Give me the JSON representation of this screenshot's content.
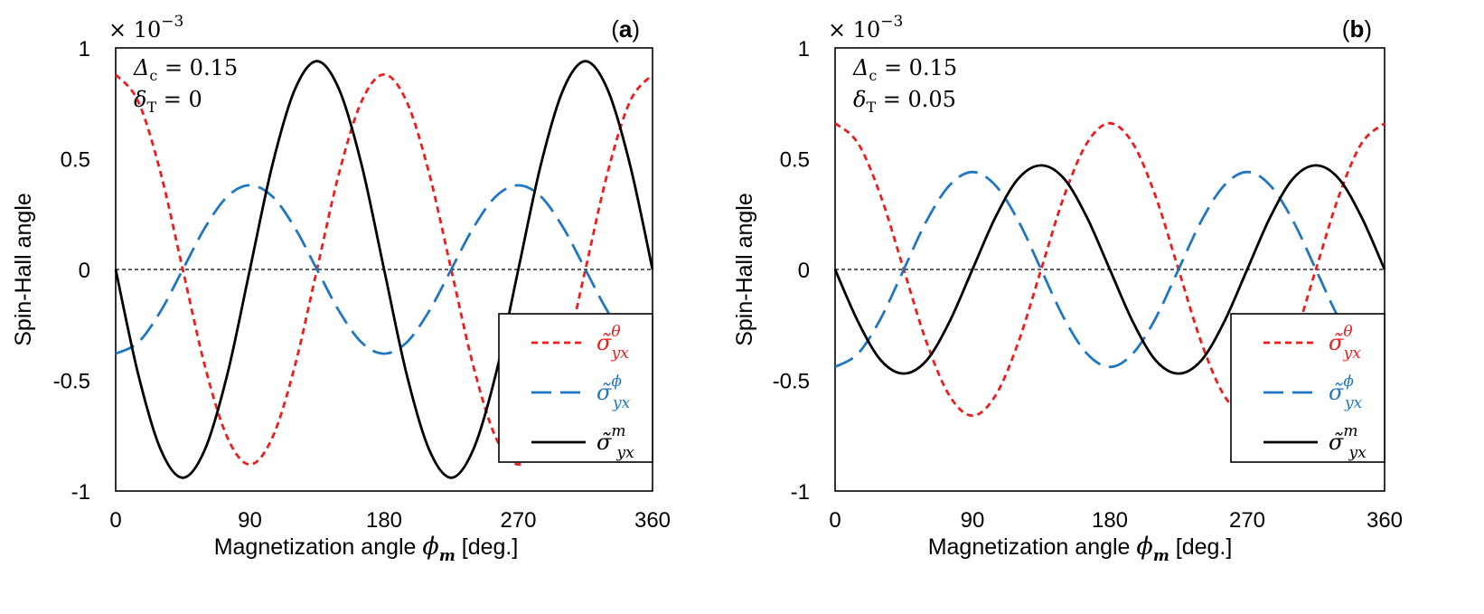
{
  "chart_data": [
    {
      "panel_label": "a",
      "type": "line",
      "xlabel_prefix": "Magnetization angle",
      "xlabel_symbol": "ϕ",
      "xlabel_sub": "m",
      "xlabel_suffix": "[deg.]",
      "ylabel": "Spin-Hall angle",
      "y_scale_text": "× 10",
      "y_scale_exp": "−3",
      "xlim": [
        0,
        360
      ],
      "ylim": [
        -1,
        1
      ],
      "x_ticks": [
        "0",
        "90",
        "180",
        "270",
        "360"
      ],
      "y_ticks": [
        "-1",
        "-0.5",
        "0",
        "0.5",
        "1"
      ],
      "annotations": [
        {
          "sym": "Δ",
          "sub": "c",
          "value": "0.15"
        },
        {
          "sym": "δ",
          "sub": "T",
          "value": "0"
        }
      ],
      "x": [
        0,
        15,
        30,
        45,
        60,
        75,
        90,
        105,
        120,
        135,
        150,
        165,
        180,
        195,
        210,
        225,
        240,
        255,
        270,
        285,
        300,
        315,
        330,
        345,
        360
      ],
      "series": [
        {
          "name": "σ̃_yx^θ",
          "color": "#ee1c1c",
          "dash": "short",
          "values": [
            0.88,
            0.76,
            0.44,
            0.0,
            -0.44,
            -0.76,
            -0.88,
            -0.76,
            -0.44,
            0.0,
            0.44,
            0.76,
            0.88,
            0.76,
            0.44,
            0.0,
            -0.44,
            -0.76,
            -0.88,
            -0.76,
            -0.44,
            0.0,
            0.44,
            0.76,
            0.88
          ]
        },
        {
          "name": "σ̃_yx^ϕ",
          "color": "#1f77c4",
          "dash": "long",
          "values": [
            -0.38,
            -0.33,
            -0.19,
            0.0,
            0.19,
            0.33,
            0.38,
            0.33,
            0.19,
            0.0,
            -0.19,
            -0.33,
            -0.38,
            -0.33,
            -0.19,
            0.0,
            0.19,
            0.33,
            0.38,
            0.33,
            0.19,
            0.0,
            -0.19,
            -0.33,
            -0.38
          ]
        },
        {
          "name": "σ̃_yx^m",
          "color": "#000000",
          "dash": "solid",
          "values": [
            0.0,
            -0.47,
            -0.81,
            -0.94,
            -0.81,
            -0.47,
            0.0,
            0.47,
            0.81,
            0.94,
            0.81,
            0.47,
            0.0,
            -0.47,
            -0.81,
            -0.94,
            -0.81,
            -0.47,
            0.0,
            0.47,
            0.81,
            0.94,
            0.81,
            0.47,
            0.0
          ]
        }
      ],
      "legend": [
        {
          "base": "σ̃",
          "sub": "yx",
          "sup": "θ",
          "color": "#ee1c1c",
          "text_color": "#ee1c1c",
          "dash": "short"
        },
        {
          "base": "σ̃",
          "sub": "yx",
          "sup": "ϕ",
          "color": "#1f77c4",
          "text_color": "#1f77c4",
          "dash": "long"
        },
        {
          "base": "σ̃",
          "sub": "yx",
          "sup": "m",
          "color": "#000000",
          "text_color": "#000000",
          "dash": "solid"
        }
      ],
      "legend_position": "lower-right",
      "zero_line": true
    },
    {
      "panel_label": "b",
      "type": "line",
      "xlabel_prefix": "Magnetization angle",
      "xlabel_symbol": "ϕ",
      "xlabel_sub": "m",
      "xlabel_suffix": "[deg.]",
      "ylabel": "Spin-Hall angle",
      "y_scale_text": "× 10",
      "y_scale_exp": "−3",
      "xlim": [
        0,
        360
      ],
      "ylim": [
        -1,
        1
      ],
      "x_ticks": [
        "0",
        "90",
        "180",
        "270",
        "360"
      ],
      "y_ticks": [
        "-1",
        "-0.5",
        "0",
        "0.5",
        "1"
      ],
      "annotations": [
        {
          "sym": "Δ",
          "sub": "c",
          "value": "0.15"
        },
        {
          "sym": "δ",
          "sub": "T",
          "value": "0.05"
        }
      ],
      "x": [
        0,
        15,
        30,
        45,
        60,
        75,
        90,
        105,
        120,
        135,
        150,
        165,
        180,
        195,
        210,
        225,
        240,
        255,
        270,
        285,
        300,
        315,
        330,
        345,
        360
      ],
      "series": [
        {
          "name": "σ̃_yx^θ",
          "color": "#ee1c1c",
          "dash": "short",
          "values": [
            0.66,
            0.57,
            0.33,
            0.0,
            -0.33,
            -0.57,
            -0.66,
            -0.57,
            -0.33,
            0.0,
            0.33,
            0.57,
            0.66,
            0.57,
            0.33,
            0.0,
            -0.33,
            -0.57,
            -0.66,
            -0.57,
            -0.33,
            0.0,
            0.33,
            0.57,
            0.66
          ]
        },
        {
          "name": "σ̃_yx^ϕ",
          "color": "#1f77c4",
          "dash": "long",
          "values": [
            -0.44,
            -0.38,
            -0.22,
            0.0,
            0.22,
            0.38,
            0.44,
            0.38,
            0.22,
            0.0,
            -0.22,
            -0.38,
            -0.44,
            -0.38,
            -0.22,
            0.0,
            0.22,
            0.38,
            0.44,
            0.38,
            0.22,
            0.0,
            -0.22,
            -0.38,
            -0.44
          ]
        },
        {
          "name": "σ̃_yx^m",
          "color": "#000000",
          "dash": "solid",
          "values": [
            0.0,
            -0.235,
            -0.41,
            -0.47,
            -0.41,
            -0.235,
            0.0,
            0.235,
            0.41,
            0.47,
            0.41,
            0.235,
            0.0,
            -0.235,
            -0.41,
            -0.47,
            -0.41,
            -0.235,
            0.0,
            0.235,
            0.41,
            0.47,
            0.41,
            0.235,
            0.0
          ]
        }
      ],
      "legend": [
        {
          "base": "σ̃",
          "sub": "yx",
          "sup": "θ",
          "color": "#ee1c1c",
          "text_color": "#ee1c1c",
          "dash": "short"
        },
        {
          "base": "σ̃",
          "sub": "yx",
          "sup": "ϕ",
          "color": "#1f77c4",
          "text_color": "#1f77c4",
          "dash": "long"
        },
        {
          "base": "σ̃",
          "sub": "yx",
          "sup": "m",
          "color": "#000000",
          "text_color": "#000000",
          "dash": "solid"
        }
      ],
      "legend_position": "lower-right",
      "zero_line": true
    }
  ]
}
